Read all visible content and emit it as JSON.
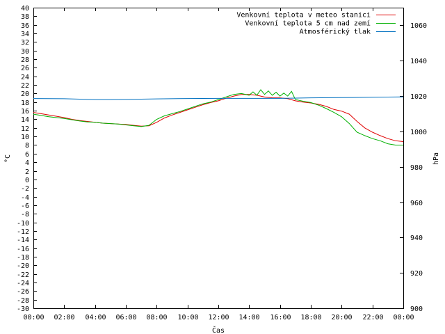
{
  "chart_data": {
    "type": "line",
    "xlabel": "Čas",
    "ylabel": "°C",
    "y2label": "hPa",
    "x_ticks": [
      "00:00",
      "02:00",
      "04:00",
      "06:00",
      "08:00",
      "10:00",
      "12:00",
      "14:00",
      "16:00",
      "18:00",
      "20:00",
      "22:00",
      "00:00"
    ],
    "xlim": [
      0,
      24
    ],
    "ylim": [
      -30,
      40
    ],
    "y2lim": [
      900,
      1070
    ],
    "y_ticks": [
      40,
      38,
      36,
      34,
      32,
      30,
      28,
      26,
      24,
      22,
      20,
      18,
      16,
      14,
      12,
      10,
      8,
      6,
      4,
      2,
      0,
      -2,
      -4,
      -6,
      -8,
      -10,
      -12,
      -14,
      -16,
      -18,
      -20,
      -22,
      -24,
      -26,
      -28,
      -30
    ],
    "y2_ticks": [
      1060,
      1040,
      1020,
      1000,
      980,
      960,
      940,
      920,
      900
    ],
    "grid": false,
    "legend_position": "top-right",
    "series": [
      {
        "name": "Venkovní teplota v meteo stanici",
        "axis": "left",
        "color": "#e00000",
        "x": [
          0,
          0.5,
          1,
          1.5,
          2,
          2.5,
          3,
          3.5,
          4,
          4.5,
          5,
          5.5,
          6,
          6.5,
          7,
          7.5,
          8,
          8.5,
          9,
          9.5,
          10,
          10.5,
          11,
          11.5,
          12,
          12.5,
          13,
          13.5,
          14,
          14.5,
          15,
          15.5,
          16,
          16.5,
          17,
          17.5,
          18,
          18.5,
          19,
          19.5,
          20,
          20.5,
          21,
          21.5,
          22,
          22.5,
          23,
          23.5,
          24
        ],
        "y": [
          15.6,
          15.3,
          15.0,
          14.7,
          14.4,
          14.0,
          13.7,
          13.5,
          13.3,
          13.1,
          13.0,
          12.9,
          12.8,
          12.6,
          12.4,
          12.5,
          13.3,
          14.3,
          15.0,
          15.6,
          16.2,
          16.8,
          17.4,
          17.9,
          18.3,
          18.9,
          19.4,
          19.8,
          19.8,
          19.6,
          19.2,
          19.0,
          19.0,
          18.8,
          18.3,
          18.0,
          17.8,
          17.5,
          17.0,
          16.3,
          15.9,
          15.2,
          13.5,
          12.0,
          11.0,
          10.2,
          9.5,
          9.0,
          8.8
        ]
      },
      {
        "name": "Venkovní teplota 5 cm nad zemí",
        "axis": "left",
        "color": "#00b000",
        "x": [
          0,
          0.5,
          1,
          1.5,
          2,
          2.5,
          3,
          3.5,
          4,
          4.5,
          5,
          5.5,
          6,
          6.5,
          7,
          7.5,
          8,
          8.5,
          9,
          9.5,
          10,
          10.5,
          11,
          11.5,
          12,
          12.5,
          13,
          13.5,
          14,
          14.25,
          14.5,
          14.75,
          15,
          15.25,
          15.5,
          15.75,
          16,
          16.25,
          16.5,
          16.75,
          17,
          17.5,
          18,
          18.5,
          19,
          19.5,
          20,
          20.5,
          21,
          21.5,
          22,
          22.5,
          23,
          23.5,
          24
        ],
        "y": [
          15.2,
          14.9,
          14.6,
          14.4,
          14.2,
          13.9,
          13.6,
          13.4,
          13.3,
          13.1,
          13.0,
          12.9,
          12.7,
          12.5,
          12.3,
          12.6,
          14.0,
          14.8,
          15.3,
          15.8,
          16.4,
          17.0,
          17.6,
          18.0,
          18.6,
          19.2,
          19.8,
          20.0,
          19.6,
          20.4,
          19.6,
          20.9,
          19.8,
          20.6,
          19.6,
          20.3,
          19.4,
          20.1,
          19.4,
          20.5,
          18.6,
          18.2,
          17.9,
          17.3,
          16.5,
          15.6,
          14.6,
          13.0,
          11.0,
          10.2,
          9.5,
          9.0,
          8.3,
          8.0,
          8.0
        ]
      },
      {
        "name": "Atmosférický tlak",
        "axis": "right",
        "color": "#0070c0",
        "x": [
          0,
          2,
          4,
          5,
          6,
          8,
          10,
          12,
          14,
          16,
          18,
          20,
          22,
          24
        ],
        "y": [
          1018.6,
          1018.5,
          1018.0,
          1018.0,
          1018.1,
          1018.4,
          1018.6,
          1018.7,
          1018.7,
          1018.7,
          1019.0,
          1019.1,
          1019.3,
          1019.5
        ]
      }
    ]
  }
}
